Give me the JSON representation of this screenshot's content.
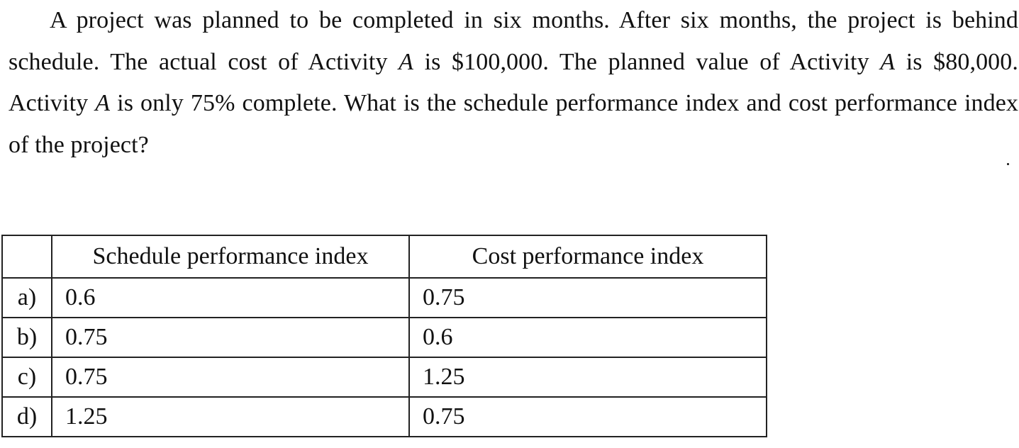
{
  "question": {
    "seg1": "A project was planned to be completed in six months. After six months, the project is behind schedule. The actual cost of Activity ",
    "var1": "A",
    "seg2": " is $100,000. The planned value of Activity ",
    "var2": "A",
    "seg3": " is $80,000. Activity ",
    "var3": "A",
    "seg4": " is only 75% complete. What is the schedule performance index and cost performance index of the project?"
  },
  "table": {
    "headers": {
      "letter": "",
      "spi": "Schedule performance index",
      "cpi": "Cost performance index"
    },
    "rows": [
      {
        "letter": "a)",
        "spi": "0.6",
        "cpi": "0.75"
      },
      {
        "letter": "b)",
        "spi": "0.75",
        "cpi": "0.6"
      },
      {
        "letter": "c)",
        "spi": "0.75",
        "cpi": "1.25"
      },
      {
        "letter": "d)",
        "spi": "1.25",
        "cpi": "0.75"
      }
    ]
  }
}
